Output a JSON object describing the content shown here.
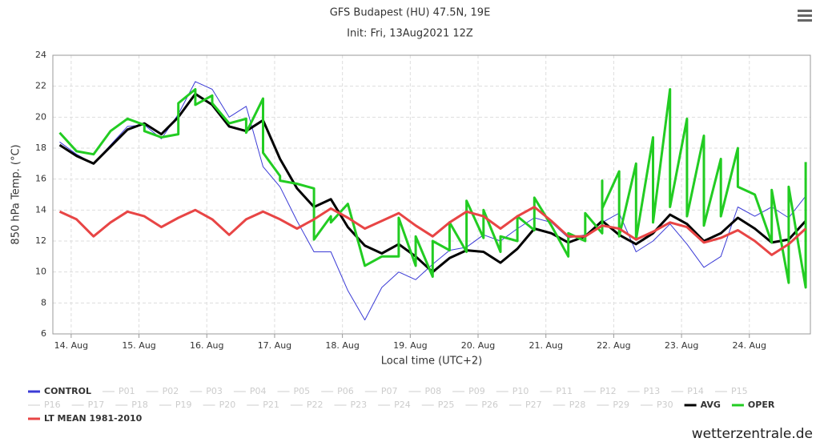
{
  "chart_data": {
    "type": "line",
    "title": "GFS Budapest (HU) 47.5N, 19E",
    "subtitle": "Init: Fri, 13Aug2021 12Z",
    "x_label": "Local time (UTC+2)",
    "y_label": "850 hPa Temp. (°C)",
    "credit": "wetterzentrale.de",
    "xlim": [
      13.73,
      24.9
    ],
    "ylim": [
      6,
      24
    ],
    "yticks": [
      6,
      8,
      10,
      12,
      14,
      16,
      18,
      20,
      22,
      24
    ],
    "xticks": [
      {
        "value": 14,
        "label": "14. Aug"
      },
      {
        "value": 15,
        "label": "15. Aug"
      },
      {
        "value": 16,
        "label": "16. Aug"
      },
      {
        "value": 17,
        "label": "17. Aug"
      },
      {
        "value": 18,
        "label": "18. Aug"
      },
      {
        "value": 19,
        "label": "19. Aug"
      },
      {
        "value": 20,
        "label": "20. Aug"
      },
      {
        "value": 21,
        "label": "21. Aug"
      },
      {
        "value": 22,
        "label": "22. Aug"
      },
      {
        "value": 23,
        "label": "23. Aug"
      },
      {
        "value": 24,
        "label": "24. Aug"
      }
    ],
    "grid": true,
    "x": [
      13.83,
      14.08,
      14.33,
      14.58,
      14.83,
      15.08,
      15.33,
      15.58,
      15.83,
      16.08,
      16.33,
      16.58,
      16.83,
      17.08,
      17.33,
      17.58,
      17.83,
      18.08,
      18.33,
      18.58,
      18.83,
      19.08,
      19.33,
      19.58,
      19.83,
      20.08,
      20.33,
      20.58,
      20.83,
      21.08,
      21.33,
      21.58,
      21.83,
      22.08,
      22.33,
      22.58,
      22.83,
      23.08,
      23.33,
      23.58,
      23.83,
      24.08,
      24.33,
      24.58,
      24.83
    ],
    "series": [
      {
        "name": "CONTROL",
        "color": "#3b3bd6",
        "width": 1,
        "values": [
          18.4,
          17.6,
          17.0,
          18.2,
          19.4,
          19.5,
          18.6,
          20.2,
          22.3,
          21.8,
          20.0,
          20.7,
          16.8,
          15.5,
          13.3,
          11.3,
          11.3,
          8.8,
          6.9,
          9.0,
          10.0,
          9.5,
          10.5,
          11.4,
          11.6,
          12.4,
          12.0,
          12.8,
          13.5,
          13.2,
          12.2,
          12.4,
          13.2,
          13.8,
          11.3,
          12.0,
          13.1,
          11.8,
          10.3,
          11.0,
          14.2,
          13.6,
          14.2,
          13.5,
          14.9
        ]
      },
      {
        "name": "AVG",
        "color": "#000000",
        "width": 3,
        "values": [
          18.2,
          17.5,
          17.0,
          18.1,
          19.2,
          19.6,
          18.9,
          20.0,
          21.5,
          20.8,
          19.4,
          19.1,
          19.8,
          17.3,
          15.4,
          14.2,
          14.7,
          12.9,
          11.7,
          11.2,
          11.8,
          11.0,
          10.0,
          10.9,
          11.4,
          11.3,
          10.6,
          11.5,
          12.8,
          12.5,
          11.9,
          12.3,
          13.3,
          12.4,
          11.8,
          12.5,
          13.7,
          13.1,
          12.0,
          12.5,
          13.5,
          12.8,
          11.9,
          12.1,
          13.3
        ]
      },
      {
        "name": "OPER",
        "color": "#22cc22",
        "width": 3,
        "x": [
          13.83,
          14.08,
          14.33,
          14.58,
          14.83,
          15.08,
          15.08,
          15.33,
          15.58,
          15.58,
          15.83,
          15.83,
          16.08,
          16.08,
          16.33,
          16.58,
          16.58,
          16.83,
          16.83,
          17.08,
          17.08,
          17.33,
          17.58,
          17.58,
          17.83,
          17.83,
          18.08,
          18.33,
          18.58,
          18.83,
          18.83,
          19.08,
          19.08,
          19.33,
          19.33,
          19.58,
          19.58,
          19.83,
          19.83,
          20.08,
          20.08,
          20.33,
          20.33,
          20.58,
          20.58,
          20.83,
          20.83,
          21.08,
          21.33,
          21.33,
          21.58,
          21.58,
          21.83,
          21.83,
          21.83,
          22.08,
          22.08,
          22.33,
          22.33,
          22.58,
          22.58,
          22.83,
          22.83,
          23.08,
          23.08,
          23.33,
          23.33,
          23.58,
          23.58,
          23.83,
          23.83,
          24.08,
          24.33,
          24.33,
          24.58,
          24.58,
          24.83,
          24.83
        ],
        "values": [
          19.0,
          17.8,
          17.6,
          19.1,
          19.9,
          19.5,
          19.1,
          18.7,
          18.9,
          20.9,
          21.8,
          20.8,
          21.4,
          20.9,
          19.6,
          19.9,
          19.0,
          21.2,
          17.7,
          16.2,
          15.9,
          15.7,
          15.4,
          12.1,
          13.6,
          13.2,
          14.4,
          10.4,
          11.0,
          11.0,
          13.5,
          10.4,
          12.3,
          9.7,
          12.0,
          11.4,
          13.2,
          11.3,
          14.6,
          12.2,
          14.0,
          11.3,
          12.3,
          12.0,
          13.6,
          12.7,
          14.8,
          13.0,
          11.0,
          12.5,
          12.0,
          13.8,
          12.5,
          15.9,
          14.1,
          16.5,
          12.3,
          17.0,
          12.1,
          18.7,
          13.2,
          21.8,
          14.2,
          19.9,
          13.6,
          18.8,
          13.0,
          17.3,
          13.6,
          18.0,
          15.5,
          15.0,
          11.9,
          15.3,
          9.3,
          15.5,
          9.0,
          17.1
        ]
      },
      {
        "name": "LT MEAN 1981-2010",
        "color": "#e84545",
        "width": 3,
        "values": [
          13.9,
          13.4,
          12.3,
          13.2,
          13.9,
          13.6,
          12.9,
          13.5,
          14.0,
          13.4,
          12.4,
          13.4,
          13.9,
          13.4,
          12.8,
          13.4,
          14.1,
          13.5,
          12.8,
          13.3,
          13.8,
          13.0,
          12.3,
          13.2,
          13.9,
          13.6,
          12.8,
          13.6,
          14.2,
          13.3,
          12.3,
          12.3,
          13.0,
          12.8,
          12.1,
          12.6,
          13.2,
          12.9,
          11.9,
          12.2,
          12.7,
          12.0,
          11.1,
          11.8,
          12.8
        ]
      }
    ],
    "hidden_series": [
      "P01",
      "P02",
      "P03",
      "P04",
      "P05",
      "P06",
      "P07",
      "P08",
      "P09",
      "P10",
      "P11",
      "P12",
      "P13",
      "P14",
      "P15",
      "P16",
      "P17",
      "P18",
      "P19",
      "P20",
      "P21",
      "P22",
      "P23",
      "P24",
      "P25",
      "P26",
      "P27",
      "P28",
      "P29",
      "P30"
    ],
    "hidden_color": "#cccccc"
  }
}
